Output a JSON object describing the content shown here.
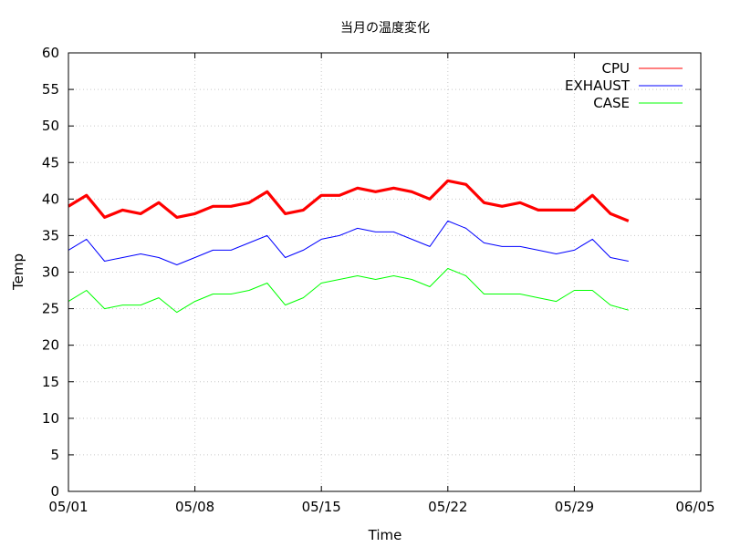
{
  "chart_data": {
    "type": "line",
    "title": "当月の温度変化",
    "xlabel": "Time",
    "ylabel": "Temp",
    "xlim": [
      "05/01",
      "06/05"
    ],
    "ylim": [
      0,
      60
    ],
    "x_tick_labels": [
      "05/01",
      "05/08",
      "05/15",
      "05/22",
      "05/29",
      "06/05"
    ],
    "y_tick_labels": [
      "0",
      "5",
      "10",
      "15",
      "20",
      "25",
      "30",
      "35",
      "40",
      "45",
      "50",
      "55",
      "60"
    ],
    "grid": true,
    "legend_position": "top-right",
    "x": [
      "05/01",
      "05/02",
      "05/03",
      "05/04",
      "05/05",
      "05/06",
      "05/07",
      "05/08",
      "05/09",
      "05/10",
      "05/11",
      "05/12",
      "05/13",
      "05/14",
      "05/15",
      "05/16",
      "05/17",
      "05/18",
      "05/19",
      "05/20",
      "05/21",
      "05/22",
      "05/23",
      "05/24",
      "05/25",
      "05/26",
      "05/27",
      "05/28",
      "05/29",
      "05/30",
      "05/31",
      "06/01"
    ],
    "series": [
      {
        "name": "CPU",
        "color": "#ff0000",
        "values": [
          39.0,
          40.5,
          37.5,
          38.5,
          38.0,
          39.5,
          37.5,
          38.0,
          39.0,
          39.0,
          39.5,
          41.0,
          38.0,
          38.5,
          40.5,
          40.5,
          41.5,
          41.0,
          41.5,
          41.0,
          40.0,
          42.5,
          42.0,
          39.5,
          39.0,
          39.5,
          38.5,
          38.5,
          38.5,
          40.5,
          38.0,
          37.0
        ]
      },
      {
        "name": "EXHAUST",
        "color": "#0000ff",
        "values": [
          33.0,
          34.5,
          31.5,
          32.0,
          32.5,
          32.0,
          31.0,
          32.0,
          33.0,
          33.0,
          34.0,
          35.0,
          32.0,
          33.0,
          34.5,
          35.0,
          36.0,
          35.5,
          35.5,
          34.5,
          33.5,
          37.0,
          36.0,
          34.0,
          33.5,
          33.5,
          33.0,
          32.5,
          33.0,
          34.5,
          32.0,
          31.5
        ]
      },
      {
        "name": "CASE",
        "color": "#00ff00",
        "values": [
          26.0,
          27.5,
          25.0,
          25.5,
          25.5,
          26.5,
          24.5,
          26.0,
          27.0,
          27.0,
          27.5,
          28.5,
          25.5,
          26.5,
          28.5,
          29.0,
          29.5,
          29.0,
          29.5,
          29.0,
          28.0,
          30.5,
          29.5,
          27.0,
          27.0,
          27.0,
          26.5,
          26.0,
          27.5,
          27.5,
          25.5,
          24.8
        ]
      }
    ]
  }
}
